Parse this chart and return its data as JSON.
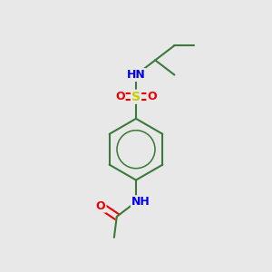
{
  "bg_color": "#e8e8e8",
  "atom_colors": {
    "C": "#3a7a3a",
    "H": "#7a9a8a",
    "N": "#0000ee",
    "O": "#ee0000",
    "S": "#cccc00"
  },
  "bond_color": "#3a7a3a",
  "bond_width": 1.5,
  "figsize": [
    3.0,
    3.0
  ],
  "dpi": 100
}
